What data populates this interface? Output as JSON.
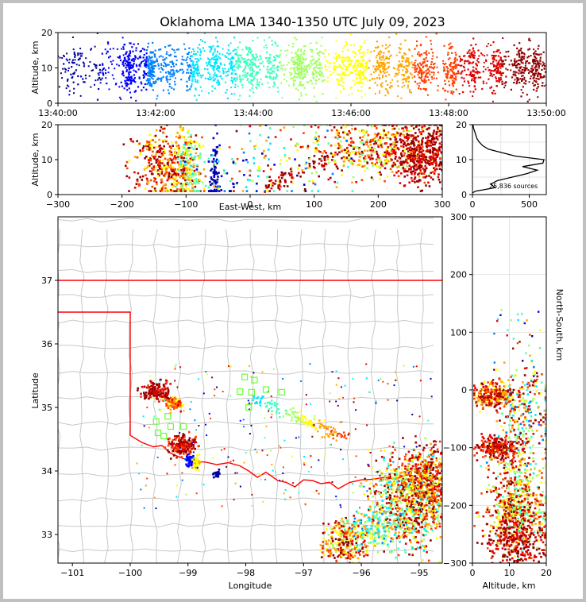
{
  "title": "Oklahoma LMA 1340-1350 UTC July 09, 2023",
  "chart_data": [
    {
      "id": "time_height",
      "type": "scatter",
      "ylabel": "Altitude, km",
      "x_ticks": [
        "13:40:00",
        "13:42:00",
        "13:44:00",
        "13:46:00",
        "13:48:00",
        "13:50:00"
      ],
      "x_range_minutes": [
        0,
        10
      ],
      "y_ticks": [
        "0",
        "10",
        "20"
      ],
      "ylim": [
        0,
        20
      ],
      "color_scale": "time (blue → red)",
      "bursts": [
        {
          "t": 0.4,
          "n": 30
        },
        {
          "t": 0.9,
          "n": 25
        },
        {
          "t": 1.45,
          "n": 120
        },
        {
          "t": 1.9,
          "n": 140
        },
        {
          "t": 2.3,
          "n": 60
        },
        {
          "t": 2.8,
          "n": 90
        },
        {
          "t": 3.2,
          "n": 80
        },
        {
          "t": 3.6,
          "n": 80
        },
        {
          "t": 3.95,
          "n": 110
        },
        {
          "t": 4.4,
          "n": 70
        },
        {
          "t": 4.95,
          "n": 120
        },
        {
          "t": 5.3,
          "n": 60
        },
        {
          "t": 5.8,
          "n": 70
        },
        {
          "t": 6.2,
          "n": 90
        },
        {
          "t": 6.65,
          "n": 90
        },
        {
          "t": 7.1,
          "n": 80
        },
        {
          "t": 7.5,
          "n": 90
        },
        {
          "t": 8.05,
          "n": 90
        },
        {
          "t": 8.5,
          "n": 80
        },
        {
          "t": 9.0,
          "n": 90
        },
        {
          "t": 9.45,
          "n": 90
        },
        {
          "t": 9.8,
          "n": 100
        }
      ]
    },
    {
      "id": "ew_height",
      "type": "scatter",
      "xlabel": "East-West, km",
      "ylabel": "Altitude, km",
      "x_ticks": [
        "−300",
        "−200",
        "−100",
        "0",
        "100",
        "200",
        "300"
      ],
      "xlim": [
        -300,
        300
      ],
      "y_ticks": [
        "0",
        "10",
        "20"
      ],
      "ylim": [
        0,
        20
      ]
    },
    {
      "id": "altitude_histogram",
      "type": "line",
      "annotation": "25,836 sources",
      "x_ticks": [
        "0",
        "500"
      ],
      "xlim": [
        0,
        650
      ],
      "y_ticks": [
        "0",
        "10",
        "20"
      ],
      "ylim": [
        0,
        20
      ],
      "profile": [
        {
          "alt": 0.5,
          "count": 0
        },
        {
          "alt": 1.0,
          "count": 30
        },
        {
          "alt": 1.5,
          "count": 120
        },
        {
          "alt": 2.0,
          "count": 200
        },
        {
          "alt": 3.0,
          "count": 160
        },
        {
          "alt": 4.0,
          "count": 220
        },
        {
          "alt": 5.0,
          "count": 350
        },
        {
          "alt": 6.0,
          "count": 480
        },
        {
          "alt": 7.0,
          "count": 570
        },
        {
          "alt": 8.0,
          "count": 440
        },
        {
          "alt": 9.0,
          "count": 620
        },
        {
          "alt": 10.0,
          "count": 630
        },
        {
          "alt": 11.0,
          "count": 380
        },
        {
          "alt": 12.0,
          "count": 260
        },
        {
          "alt": 13.0,
          "count": 140
        },
        {
          "alt": 14.0,
          "count": 90
        },
        {
          "alt": 15.0,
          "count": 60
        },
        {
          "alt": 16.0,
          "count": 40
        },
        {
          "alt": 17.0,
          "count": 30
        },
        {
          "alt": 18.0,
          "count": 20
        },
        {
          "alt": 19.0,
          "count": 10
        },
        {
          "alt": 20.0,
          "count": 5
        }
      ]
    },
    {
      "id": "plan_view",
      "type": "scatter",
      "xlabel": "Longitude",
      "ylabel": "Latitude",
      "x_ticks": [
        "−101",
        "−100",
        "−99",
        "−98",
        "−97",
        "−96",
        "−95"
      ],
      "xlim": [
        -101.25,
        -94.6
      ],
      "y_ticks": [
        "33",
        "34",
        "35",
        "36",
        "37"
      ],
      "ylim": [
        32.55,
        38.0
      ],
      "stations": [
        {
          "lon": -98.02,
          "lat": 35.48
        },
        {
          "lon": -97.85,
          "lat": 35.43
        },
        {
          "lon": -98.1,
          "lat": 35.25
        },
        {
          "lon": -97.9,
          "lat": 35.24
        },
        {
          "lon": -97.65,
          "lat": 35.28
        },
        {
          "lon": -97.38,
          "lat": 35.24
        },
        {
          "lon": -97.95,
          "lat": 35.0
        },
        {
          "lon": -99.35,
          "lat": 34.86
        },
        {
          "lon": -99.55,
          "lat": 34.78
        },
        {
          "lon": -99.3,
          "lat": 34.7
        },
        {
          "lon": -99.08,
          "lat": 34.7
        },
        {
          "lon": -99.52,
          "lat": 34.6
        },
        {
          "lon": -99.42,
          "lat": 34.55
        }
      ]
    },
    {
      "id": "altitude_ns",
      "type": "scatter",
      "xlabel": "Altitude, km",
      "ylabel": "North-South, km",
      "x_ticks": [
        "0",
        "10",
        "20"
      ],
      "xlim": [
        0,
        20
      ],
      "y_ticks": [
        "300",
        "200",
        "100",
        "0",
        "−100",
        "−200",
        "−300"
      ],
      "ylim": [
        -300,
        300
      ]
    }
  ],
  "colors": {
    "scale": [
      "#0000a0",
      "#0000ff",
      "#0080ff",
      "#00e5ff",
      "#40ffc0",
      "#a0ff60",
      "#ffff00",
      "#ffa500",
      "#ff4000",
      "#e00000",
      "#900000"
    ],
    "state_line": "#ff0000",
    "county_line": "#c8c8c8",
    "station": "#66ff33"
  }
}
